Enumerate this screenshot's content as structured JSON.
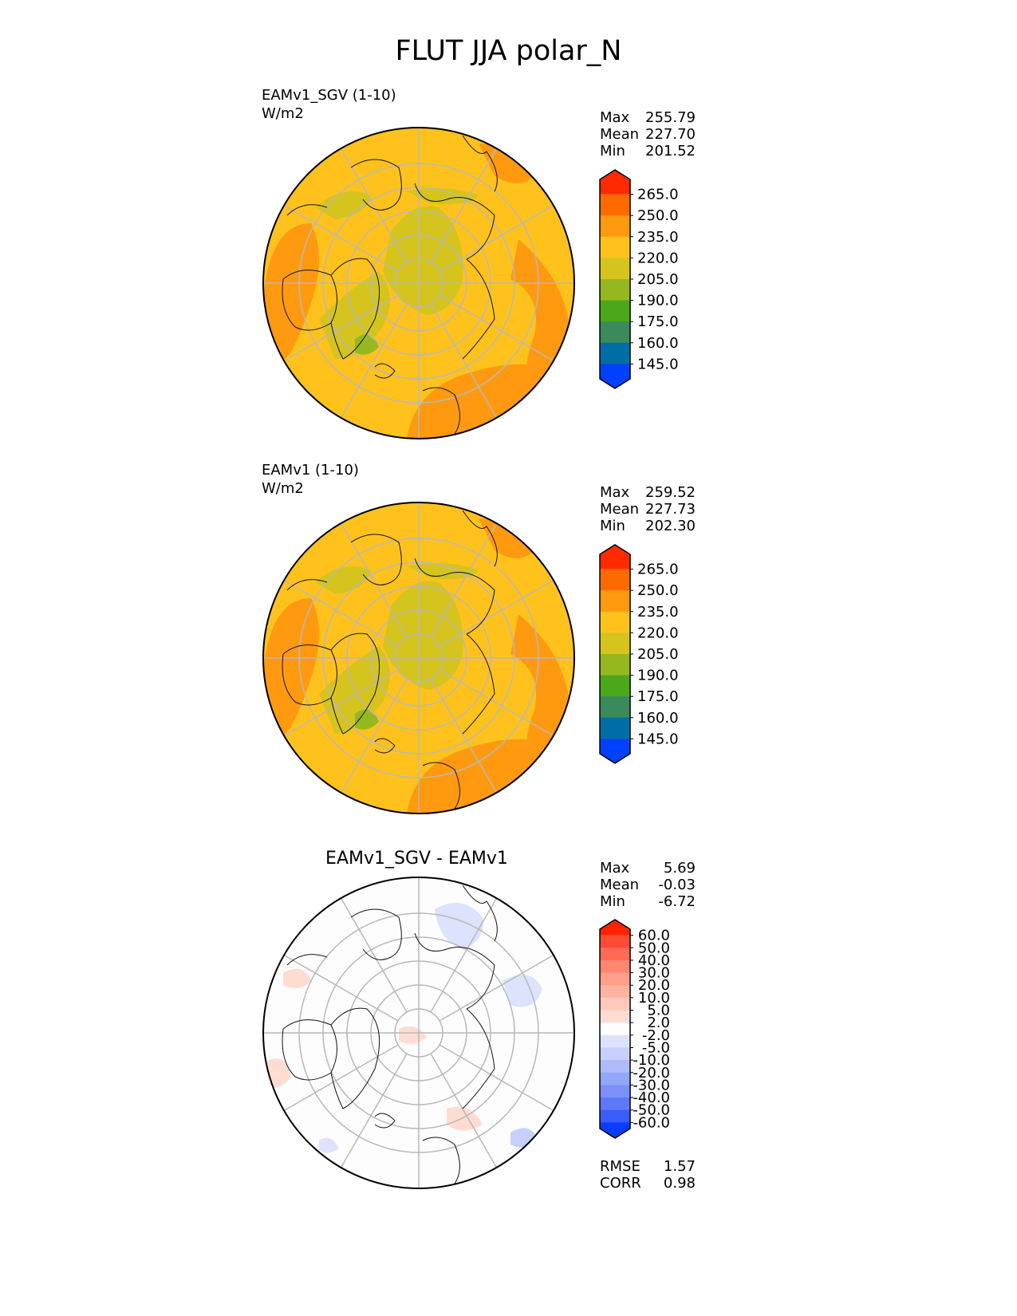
{
  "title": "FLUT JJA polar_N",
  "panels": [
    {
      "name": "EAMv1_SGV (1-10)",
      "units": "W/m2",
      "stats": {
        "max_label": "Max",
        "max": "255.79",
        "mean_label": "Mean",
        "mean": "227.70",
        "min_label": "Min",
        "min": "201.52"
      }
    },
    {
      "name": "EAMv1 (1-10)",
      "units": "W/m2",
      "stats": {
        "max_label": "Max",
        "max": "259.52",
        "mean_label": "Mean",
        "mean": "227.73",
        "min_label": "Min",
        "min": "202.30"
      }
    }
  ],
  "diff": {
    "title": "EAMv1_SGV - EAMv1",
    "stats": {
      "max_label": "Max",
      "max": "5.69",
      "mean_label": "Mean",
      "mean": "-0.03",
      "min_label": "Min",
      "min": "-6.72"
    },
    "metrics": {
      "rmse_label": "RMSE",
      "rmse": "1.57",
      "corr_label": "CORR",
      "corr": "0.98"
    }
  },
  "chart_data": {
    "type": "heatmap",
    "projection": "north polar stereographic",
    "variable": "FLUT",
    "season": "JJA",
    "colorbar_main": {
      "ticks": [
        "265.0",
        "250.0",
        "235.0",
        "220.0",
        "205.0",
        "190.0",
        "175.0",
        "160.0",
        "145.0"
      ],
      "colors_top_to_bottom": [
        "#ff2a00",
        "#ff6a00",
        "#ff9a10",
        "#ffc21d",
        "#d5c41e",
        "#95b81f",
        "#4aa81a",
        "#3a8a5c",
        "#006ea6",
        "#0040ff"
      ]
    },
    "colorbar_diff": {
      "ticks": [
        "60.0",
        "50.0",
        "40.0",
        "30.0",
        "20.0",
        "10.0",
        "5.0",
        "2.0",
        "-2.0",
        "-5.0",
        "-10.0",
        "-20.0",
        "-30.0",
        "-40.0",
        "-50.0",
        "-60.0"
      ],
      "colors_top_to_bottom": [
        "#ff2200",
        "#ff4a36",
        "#ff6a55",
        "#ff8670",
        "#ff9e8a",
        "#ffb4a2",
        "#ffc8ba",
        "#ffdcd2",
        "#fdfdfd",
        "#dde2fd",
        "#c7cffc",
        "#aebbfb",
        "#94a6fa",
        "#7b91f9",
        "#5d79fa",
        "#3a5cfa",
        "#0a3dff"
      ]
    },
    "fields": [
      {
        "panel": "EAMv1_SGV (1-10)",
        "base_color": "#ffc21d"
      },
      {
        "panel": "EAMv1 (1-10)",
        "base_color": "#ffc21d"
      },
      {
        "panel": "EAMv1_SGV - EAMv1",
        "base_color": "#fdfdfd"
      }
    ]
  }
}
